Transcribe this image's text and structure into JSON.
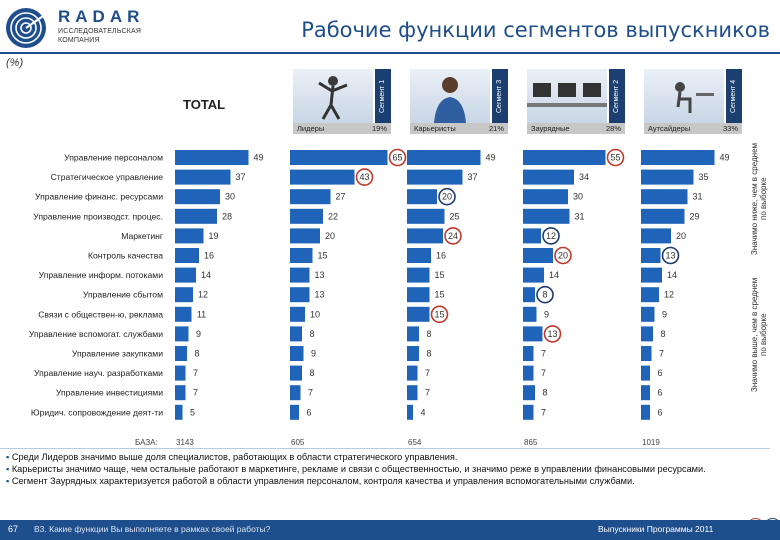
{
  "header": {
    "brand": "RADAR",
    "company_line1": "ИССЛЕДОВАТЕЛЬСКАЯ",
    "company_line2": "КОМПАНИЯ",
    "title": "Рабочие функции сегментов выпускников",
    "unit": "(%)"
  },
  "segments": [
    {
      "tab": "Сегмент 1",
      "name": "Лидеры",
      "share": "19%"
    },
    {
      "tab": "Сегмент 3",
      "name": "Карьеристы",
      "share": "21%"
    },
    {
      "tab": "Сегмент 2",
      "name": "Заурядные",
      "share": "28%"
    },
    {
      "tab": "Сегмент 4",
      "name": "Аутсайдеры",
      "share": "33%"
    }
  ],
  "legend": {
    "low": "Значимо ниже, чем в среднем по выборке",
    "high": "Значимо выше, чем в среднем по выборке",
    "low_color": "#c0392b",
    "high_color": "#1f3b6e"
  },
  "base": {
    "label": "БАЗА:",
    "values": [
      "3143",
      "605",
      "654",
      "865",
      "1019"
    ]
  },
  "chart_data": {
    "type": "bar",
    "title": "Рабочие функции сегментов выпускников",
    "panels": [
      "TOTAL",
      "Лидеры",
      "Карьеристы",
      "Заурядные",
      "Аутсайдеры"
    ],
    "categories": [
      "Управление персоналом",
      "Стратегическое управление",
      "Управление финанс. ресурсами",
      "Управление производст. процес.",
      "Маркетинг",
      "Контроль качества",
      "Управление информ. потоками",
      "Управление сбытом",
      "Связи с обществен-ю, реклама",
      "Управление вспомогат. службами",
      "Управление закупками",
      "Управление науч. разработками",
      "Управление инвестициями",
      "Юридич. сопровождение деят-ти"
    ],
    "series": [
      {
        "name": "TOTAL",
        "values": [
          49,
          37,
          30,
          28,
          19,
          16,
          14,
          12,
          11,
          9,
          8,
          7,
          7,
          5
        ]
      },
      {
        "name": "Лидеры",
        "values": [
          65,
          43,
          27,
          22,
          20,
          15,
          13,
          13,
          10,
          8,
          9,
          8,
          7,
          6
        ]
      },
      {
        "name": "Карьеристы",
        "values": [
          49,
          37,
          20,
          25,
          24,
          16,
          15,
          15,
          15,
          8,
          8,
          7,
          7,
          4
        ]
      },
      {
        "name": "Заурядные",
        "values": [
          55,
          34,
          30,
          31,
          12,
          20,
          14,
          8,
          9,
          13,
          7,
          7,
          8,
          7
        ]
      },
      {
        "name": "Аутсайдеры",
        "values": [
          49,
          35,
          31,
          29,
          20,
          13,
          14,
          12,
          9,
          8,
          7,
          6,
          6,
          6
        ]
      }
    ],
    "highlights": [
      {
        "series": "Лидеры",
        "category": "Управление персоналом",
        "type": "high"
      },
      {
        "series": "Лидеры",
        "category": "Стратегическое управление",
        "type": "high"
      },
      {
        "series": "Карьеристы",
        "category": "Управление финанс. ресурсами",
        "type": "low"
      },
      {
        "series": "Карьеристы",
        "category": "Маркетинг",
        "type": "high"
      },
      {
        "series": "Карьеристы",
        "category": "Связи с обществен-ю, реклама",
        "type": "high"
      },
      {
        "series": "Заурядные",
        "category": "Управление персоналом",
        "type": "high"
      },
      {
        "series": "Заурядные",
        "category": "Маркетинг",
        "type": "low"
      },
      {
        "series": "Заурядные",
        "category": "Контроль качества",
        "type": "high"
      },
      {
        "series": "Заурядные",
        "category": "Управление сбытом",
        "type": "low"
      },
      {
        "series": "Заурядные",
        "category": "Управление вспомогат. службами",
        "type": "high"
      },
      {
        "series": "Аутсайдеры",
        "category": "Контроль качества",
        "type": "low"
      }
    ],
    "bar_color": "#1f64b8"
  },
  "notes": [
    "Среди Лидеров значимо выше доля специалистов, работающих в области стратегического управления.",
    "Карьеристы значимо чаще, чем остальные работают в маркетинге, рекламе и связи с общественностью, и значимо реже в управлении финансовыми ресурсами.",
    "Сегмент Заурядных характеризуется работой в области управления персоналом, контроля качества и управления вспомогательными службами."
  ],
  "footer": {
    "page_number": "67",
    "question": "В3. Какие функции Вы выполняете в рамках своей работы?",
    "right_text": "Выпускники Программы 2011"
  }
}
